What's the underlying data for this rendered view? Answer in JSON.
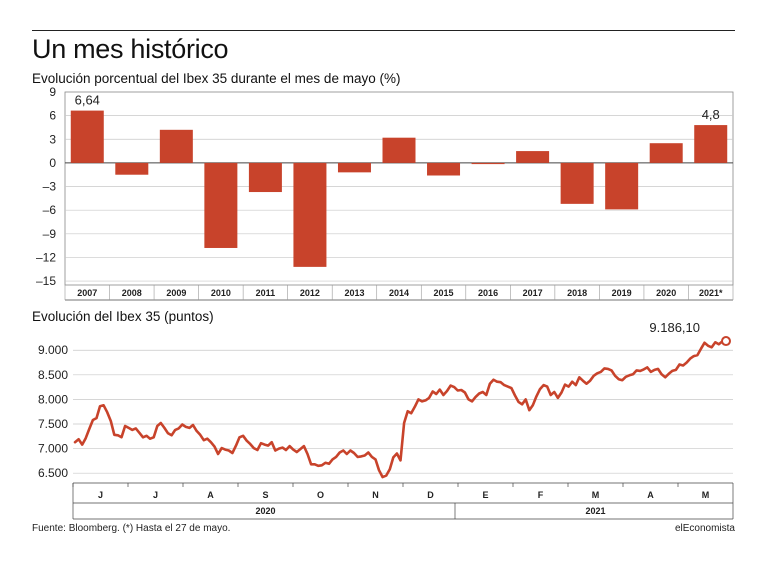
{
  "header": {
    "title": "Un mes histórico"
  },
  "chart_data": [
    {
      "type": "bar",
      "title": "Evolución porcentual del Ibex 35 durante el mes de mayo (%)",
      "categories": [
        "2007",
        "2008",
        "2009",
        "2010",
        "2011",
        "2012",
        "2013",
        "2014",
        "2015",
        "2016",
        "2017",
        "2018",
        "2019",
        "2020",
        "2021*"
      ],
      "values": [
        6.64,
        -1.5,
        4.2,
        -10.8,
        -3.7,
        -13.2,
        -1.2,
        3.2,
        -1.6,
        -0.1,
        1.5,
        -5.2,
        -5.9,
        2.5,
        4.8
      ],
      "yticks": [
        "9",
        "6",
        "3",
        "0",
        "–3",
        "–6",
        "–9",
        "–12",
        "–15"
      ],
      "ylim": [
        -15.5,
        9
      ],
      "annotations": [
        {
          "category": "2007",
          "text": "6,64"
        },
        {
          "category": "2021*",
          "text": "4,8"
        }
      ],
      "color": "#c8432b"
    },
    {
      "type": "line",
      "title": "Evolución del Ibex 35 (puntos)",
      "x_range": [
        "2020-05-27",
        "2021-05-27"
      ],
      "x_axis_months": [
        "J",
        "J",
        "A",
        "S",
        "O",
        "N",
        "D",
        "E",
        "F",
        "M",
        "A",
        "M"
      ],
      "x_axis_years": [
        "2020",
        "2021"
      ],
      "yticks": [
        "9.000",
        "8.500",
        "8.000",
        "7.500",
        "7.000",
        "6.500"
      ],
      "ylim": [
        6300,
        9350
      ],
      "values": [
        7130,
        7190,
        7080,
        7210,
        7400,
        7580,
        7620,
        7860,
        7880,
        7740,
        7560,
        7280,
        7270,
        7230,
        7460,
        7420,
        7380,
        7410,
        7320,
        7230,
        7260,
        7200,
        7230,
        7460,
        7520,
        7420,
        7310,
        7270,
        7380,
        7410,
        7490,
        7440,
        7420,
        7480,
        7360,
        7280,
        7170,
        7200,
        7130,
        7040,
        6890,
        7010,
        6980,
        6960,
        6910,
        7060,
        7230,
        7260,
        7160,
        7090,
        7010,
        6970,
        7110,
        7080,
        7060,
        7130,
        6960,
        7000,
        7020,
        6970,
        7050,
        6980,
        6930,
        6990,
        7050,
        6890,
        6680,
        6680,
        6650,
        6660,
        6710,
        6690,
        6780,
        6830,
        6920,
        6960,
        6890,
        6960,
        6910,
        6830,
        6840,
        6860,
        6920,
        6830,
        6780,
        6560,
        6420,
        6450,
        6580,
        6820,
        6900,
        6760,
        7520,
        7760,
        7720,
        7850,
        8000,
        7960,
        7980,
        8030,
        8160,
        8110,
        8200,
        8090,
        8170,
        8280,
        8250,
        8180,
        8190,
        8140,
        8000,
        7960,
        8050,
        8120,
        8150,
        8090,
        8320,
        8400,
        8360,
        8350,
        8290,
        8260,
        8230,
        8080,
        7950,
        7900,
        8000,
        7780,
        7880,
        8060,
        8210,
        8290,
        8260,
        8090,
        8150,
        8030,
        8140,
        8300,
        8260,
        8360,
        8290,
        8450,
        8380,
        8320,
        8380,
        8480,
        8530,
        8560,
        8630,
        8620,
        8590,
        8480,
        8410,
        8390,
        8460,
        8490,
        8510,
        8590,
        8580,
        8610,
        8650,
        8560,
        8600,
        8620,
        8510,
        8450,
        8520,
        8580,
        8600,
        8710,
        8690,
        8750,
        8830,
        8880,
        8900,
        9030,
        9150,
        9090,
        9060,
        9160,
        9120,
        9180,
        9186.1
      ],
      "end_label": "9.186,10",
      "color": "#c8432b"
    }
  ],
  "footer": {
    "source": "Fuente: Bloomberg. (*) Hasta el 27 de mayo.",
    "brand": "elEconomista"
  }
}
